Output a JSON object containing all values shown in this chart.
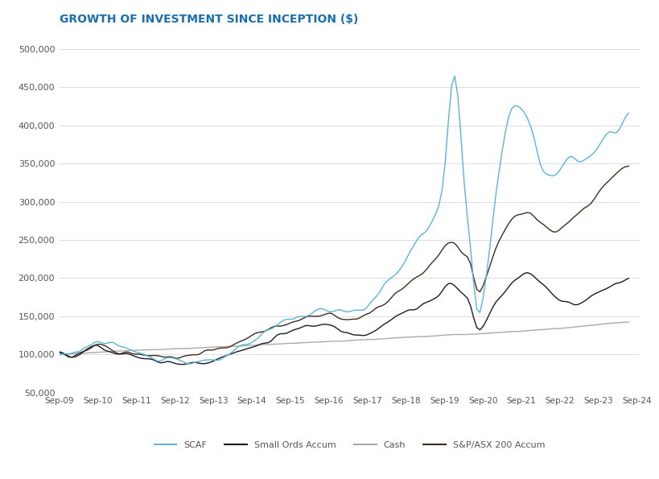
{
  "title": "GROWTH OF INVESTMENT SINCE INCEPTION ($)",
  "title_color": "#1a6faf",
  "background_color": "#ffffff",
  "ylim": [
    50000,
    520000
  ],
  "yticks": [
    50000,
    100000,
    150000,
    200000,
    250000,
    300000,
    350000,
    400000,
    450000,
    500000
  ],
  "xtick_labels": [
    "Sep-09",
    "Sep-10",
    "Sep-11",
    "Sep-12",
    "Sep-13",
    "Sep-14",
    "Sep-15",
    "Sep-16",
    "Sep-17",
    "Sep-18",
    "Sep-19",
    "Sep-20",
    "Sep-21",
    "Sep-22",
    "Sep-23",
    "Sep-24"
  ],
  "legend_entries": [
    "SCAF",
    "Small Ords Accum",
    "Cash",
    "S&P/ASX 200 Accum"
  ],
  "line_colors": {
    "SCAF": "#5ab4d6",
    "Small Ords Accum": "#1a1a2e",
    "Cash": "#aaaaaa",
    "SP200": "#3d2b1f"
  },
  "grid_color": "#dddddd",
  "text_color": "#555555",
  "axis_label_color": "#555555"
}
